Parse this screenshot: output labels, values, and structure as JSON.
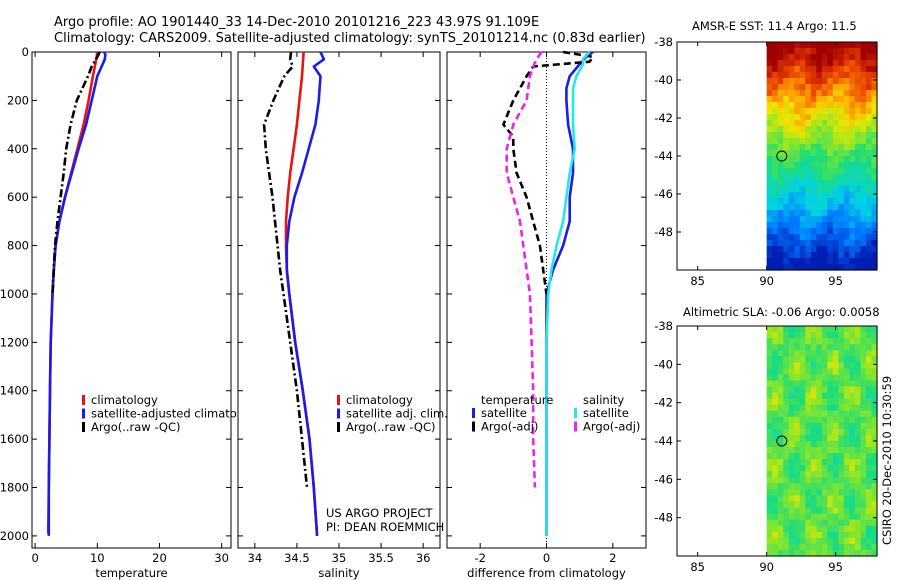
{
  "header": {
    "title_line1": "Argo profile: AO 1901440_33 14-Dec-2010 20101216_223 43.97S 91.109E",
    "title_line2": "Climatology: CARS2009. Satellite-adjusted climatology: synTS_20101214.nc (0.83d earlier)"
  },
  "footer": {
    "project": "US ARGO PROJECT",
    "pi": "PI: DEAN ROEMMICH",
    "stamp": "CSIRO 20-Dec-2010 10:30:59"
  },
  "colors": {
    "climatology": "#ee1111",
    "satellite": "#1b1bee",
    "argo": "#000000",
    "cyan": "#22e8e8",
    "magenta": "#ee22ee"
  },
  "chart_data": [
    {
      "type": "line",
      "id": "temp",
      "xlabel": "temperature",
      "xlim": [
        -0.5,
        31.5
      ],
      "xticks": [
        0,
        10,
        20,
        30
      ],
      "ylim": [
        2050,
        0
      ],
      "yticks": [
        0,
        200,
        400,
        600,
        800,
        1000,
        1200,
        1400,
        1600,
        1800,
        2000
      ],
      "legend": [
        "climatology",
        "satellite-adjusted climatology",
        "Argo(..raw -QC)"
      ],
      "series": [
        {
          "name": "climatology",
          "color": "#ee1111",
          "style": "solid",
          "depth": [
            0,
            20,
            60,
            100,
            200,
            300,
            400,
            500,
            600,
            700,
            800,
            900,
            1000,
            1200,
            1400,
            1600,
            1800,
            1990
          ],
          "values": [
            10.0,
            9.9,
            9.6,
            9.3,
            8.6,
            7.8,
            6.8,
            5.8,
            4.8,
            3.9,
            3.3,
            3.0,
            2.8,
            2.5,
            2.4,
            2.3,
            2.2,
            2.1
          ]
        },
        {
          "name": "satellite-adjusted climatology",
          "color": "#1b1bee",
          "style": "solid",
          "depth": [
            0,
            10,
            30,
            60,
            100,
            200,
            300,
            400,
            500,
            600,
            700,
            800,
            900,
            1000,
            1200,
            1400,
            1600,
            1800,
            2000
          ],
          "values": [
            11.1,
            11.3,
            11.2,
            10.7,
            10.0,
            9.1,
            8.2,
            7.0,
            5.9,
            4.8,
            3.9,
            3.3,
            3.0,
            2.8,
            2.5,
            2.4,
            2.3,
            2.2,
            2.2
          ]
        },
        {
          "name": "Argo(..raw -QC)",
          "color": "#000000",
          "style": "dashdot",
          "depth": [
            0,
            20,
            60,
            100,
            200,
            300,
            400,
            500,
            600,
            700,
            800,
            900,
            1000
          ],
          "values": [
            10.4,
            10.0,
            9.1,
            8.5,
            6.7,
            5.7,
            5.0,
            4.6,
            4.1,
            3.6,
            3.2,
            3.0,
            2.8
          ]
        }
      ]
    },
    {
      "type": "line",
      "id": "salt",
      "xlabel": "salinity",
      "xlim": [
        33.8,
        36.2
      ],
      "xticks": [
        34,
        34.5,
        35,
        35.5,
        36
      ],
      "xticklabels": [
        "34",
        "34.5",
        "35",
        "35.5",
        "36"
      ],
      "ylim": [
        2050,
        0
      ],
      "legend": [
        "climatology",
        "satellite adj. clim.",
        "Argo(..raw -QC)"
      ],
      "series": [
        {
          "name": "climatology",
          "color": "#ee1111",
          "style": "solid",
          "depth": [
            0,
            100,
            200,
            300,
            400,
            500,
            600,
            700,
            800,
            900,
            1000,
            1200,
            1400,
            1600,
            1800,
            2000
          ],
          "values": [
            34.58,
            34.56,
            34.53,
            34.5,
            34.46,
            34.42,
            34.39,
            34.37,
            34.37,
            34.38,
            34.41,
            34.48,
            34.57,
            34.65,
            34.7,
            34.74
          ]
        },
        {
          "name": "satellite adj. clim.",
          "color": "#1b1bee",
          "style": "solid",
          "depth": [
            0,
            30,
            60,
            100,
            150,
            200,
            300,
            400,
            500,
            600,
            700,
            800,
            900,
            1000,
            1200,
            1400,
            1600,
            1800,
            2000
          ],
          "values": [
            34.78,
            34.82,
            34.7,
            34.78,
            34.77,
            34.76,
            34.72,
            34.64,
            34.56,
            34.47,
            34.41,
            34.38,
            34.38,
            34.41,
            34.48,
            34.57,
            34.65,
            34.7,
            34.74
          ]
        },
        {
          "name": "Argo(..raw -QC)",
          "color": "#000000",
          "style": "dashdot",
          "depth": [
            0,
            30,
            60,
            100,
            200,
            300,
            400,
            500,
            600,
            700,
            800,
            900,
            1000,
            1200,
            1400,
            1600,
            1800
          ],
          "values": [
            34.43,
            34.42,
            34.45,
            34.35,
            34.22,
            34.11,
            34.13,
            34.17,
            34.21,
            34.24,
            34.27,
            34.3,
            34.34,
            34.42,
            34.5,
            34.56,
            34.62
          ]
        }
      ]
    },
    {
      "type": "line",
      "id": "diff",
      "xlabel": "difference from climatology",
      "xlim": [
        -3.0,
        3.0
      ],
      "xticks": [
        -2,
        0,
        2
      ],
      "ylim": [
        2050,
        0
      ],
      "legend": [
        "temperature",
        "satellite",
        "Argo(-adj)",
        "salinity",
        "satellite",
        "Argo(-adj)"
      ],
      "series": [
        {
          "name": "temperature satellite",
          "color": "#1b1bee",
          "style": "solid",
          "depth": [
            0,
            20,
            50,
            100,
            150,
            200,
            300,
            400,
            500,
            600,
            700,
            800,
            900,
            1000,
            1100,
            1200,
            1400,
            1600,
            1800,
            2000
          ],
          "values": [
            1.4,
            1.2,
            1.0,
            0.7,
            0.6,
            0.6,
            0.65,
            0.8,
            0.8,
            0.7,
            0.7,
            0.5,
            0.2,
            0.0,
            0.0,
            0.0,
            0.0,
            0.0,
            0.0,
            0.0
          ]
        },
        {
          "name": "temperature Argo(-adj)",
          "color": "#000000",
          "style": "dashed",
          "depth": [
            0,
            20,
            40,
            60,
            100,
            150,
            200,
            300,
            350,
            400,
            500,
            600,
            700,
            800,
            900,
            1000
          ],
          "values": [
            0.5,
            1.4,
            1.3,
            -0.4,
            -0.6,
            -0.8,
            -1.0,
            -1.3,
            -1.0,
            -1.0,
            -0.9,
            -0.6,
            -0.4,
            -0.2,
            -0.1,
            0.0
          ]
        },
        {
          "name": "salinity satellite",
          "color": "#22e8e8",
          "style": "solid",
          "depth": [
            0,
            30,
            50,
            100,
            150,
            200,
            300,
            400,
            500,
            600,
            700,
            800,
            900,
            1000,
            1200,
            1400,
            1600,
            1800,
            2000
          ],
          "values": [
            1.3,
            1.1,
            1.1,
            0.9,
            0.8,
            0.8,
            0.8,
            0.85,
            0.7,
            0.6,
            0.5,
            0.3,
            0.15,
            0.05,
            0.0,
            0.0,
            0.0,
            0.0,
            0.0
          ]
        },
        {
          "name": "salinity Argo(-adj)",
          "color": "#ee22ee",
          "style": "dashed",
          "depth": [
            0,
            30,
            60,
            100,
            200,
            300,
            400,
            500,
            600,
            700,
            800,
            900,
            1000,
            1200,
            1400,
            1600,
            1800
          ],
          "values": [
            -0.15,
            -0.3,
            -0.4,
            -0.5,
            -0.6,
            -1.0,
            -1.2,
            -1.2,
            -1.0,
            -0.8,
            -0.7,
            -0.6,
            -0.5,
            -0.45,
            -0.4,
            -0.4,
            -0.35
          ]
        }
      ]
    },
    {
      "type": "heatmap",
      "id": "sst",
      "title": "AMSR-E SST: 11.4  Argo: 11.5",
      "xlim": [
        83.5,
        98
      ],
      "ylim": [
        -50,
        -38
      ],
      "xticks": [
        85,
        90,
        95
      ],
      "yticks": [
        -38,
        -40,
        -42,
        -44,
        -46,
        -48
      ],
      "data_lon_range": [
        90,
        98
      ],
      "marker": {
        "lon": 91.1,
        "lat": -44.0
      }
    },
    {
      "type": "heatmap",
      "id": "sla",
      "title": "Altimetric SLA: -0.06  Argo: 0.0058",
      "xlim": [
        83.5,
        98
      ],
      "ylim": [
        -50,
        -38
      ],
      "xticks": [
        85,
        90,
        95
      ],
      "yticks": [
        -38,
        -40,
        -42,
        -44,
        -46,
        -48
      ],
      "data_lon_range": [
        90,
        98
      ],
      "marker": {
        "lon": 91.1,
        "lat": -44.0
      }
    }
  ]
}
